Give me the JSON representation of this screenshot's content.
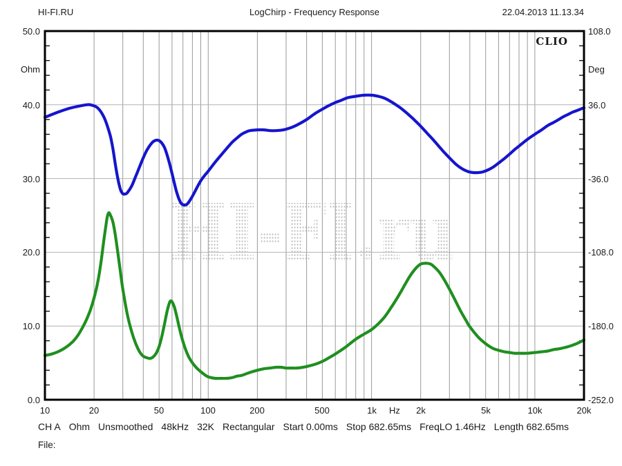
{
  "header": {
    "site": "HI-FI.RU",
    "title": "LogChirp - Frequency Response",
    "datetime": "22.04.2013 11.13.34"
  },
  "plot": {
    "brand": "CLIO",
    "watermark": "HI-FI.ru",
    "left_axis": {
      "unit": "Ohm",
      "min": 0,
      "max": 50,
      "tick_labels": [
        "50.0",
        "40.0",
        "30.0",
        "20.0",
        "10.0",
        "0.0"
      ],
      "tick_values": [
        50,
        40,
        30,
        20,
        10,
        0
      ]
    },
    "right_axis": {
      "unit": "Deg",
      "min": -252,
      "max": 108,
      "tick_labels": [
        "108.0",
        "36.0",
        "-36.0",
        "-108.0",
        "-180.0",
        "-252.0"
      ],
      "tick_values": [
        108,
        36,
        -36,
        -108,
        -180,
        -252
      ]
    },
    "x_axis": {
      "unit": "Hz",
      "scale": "log",
      "min": 10,
      "max": 20000,
      "tick_labels": [
        "10",
        "20",
        "50",
        "100",
        "200",
        "500",
        "1k",
        "2k",
        "5k",
        "10k",
        "20k"
      ],
      "tick_values": [
        10,
        20,
        50,
        100,
        200,
        500,
        1000,
        2000,
        5000,
        10000,
        20000
      ]
    }
  },
  "status_line": {
    "items": [
      "CH A",
      "Ohm",
      "Unsmoothed",
      "48kHz",
      "32K",
      "Rectangular",
      "Start 0.00ms",
      "Stop 682.65ms",
      "FreqLO 1.46Hz",
      "Length 682.65ms"
    ]
  },
  "footer": {
    "file_label": "File:"
  },
  "colors": {
    "frame": "#000000",
    "grid_vertical": "#9a9a9a",
    "grid_horizontal": "#b2b2b2",
    "impedance": "#1f8f1f",
    "phase": "#1515cd",
    "watermark": "#bdbdbd"
  },
  "chart_data": {
    "type": "line",
    "title": "LogChirp - Frequency Response",
    "xlabel": "Hz",
    "x_scale": "log",
    "x_range": [
      10,
      20000
    ],
    "left_axis": {
      "label": "Ohm",
      "range": [
        0,
        50
      ]
    },
    "right_axis": {
      "label": "Deg",
      "range": [
        -252,
        108
      ]
    },
    "grid": "on",
    "series": [
      {
        "name": "Impedance magnitude",
        "axis": "left",
        "unit": "Ohm",
        "color": "#1f8f1f",
        "points": [
          [
            10,
            6.0
          ],
          [
            11,
            6.2
          ],
          [
            12,
            6.5
          ],
          [
            13,
            6.9
          ],
          [
            14,
            7.4
          ],
          [
            15,
            8.0
          ],
          [
            16,
            8.8
          ],
          [
            17,
            9.8
          ],
          [
            18,
            10.9
          ],
          [
            19,
            12.2
          ],
          [
            20,
            13.8
          ],
          [
            21,
            15.8
          ],
          [
            22,
            18.5
          ],
          [
            23,
            21.8
          ],
          [
            24,
            24.6
          ],
          [
            24.5,
            25.3
          ],
          [
            25,
            25.2
          ],
          [
            26,
            24.2
          ],
          [
            27,
            22.3
          ],
          [
            28,
            19.8
          ],
          [
            29,
            17.3
          ],
          [
            30,
            15.0
          ],
          [
            32,
            11.5
          ],
          [
            34,
            9.2
          ],
          [
            36,
            7.6
          ],
          [
            38,
            6.5
          ],
          [
            40,
            5.9
          ],
          [
            42,
            5.7
          ],
          [
            44,
            5.6
          ],
          [
            46,
            5.8
          ],
          [
            48,
            6.3
          ],
          [
            50,
            7.2
          ],
          [
            52,
            8.6
          ],
          [
            54,
            10.3
          ],
          [
            56,
            12.0
          ],
          [
            58,
            13.2
          ],
          [
            59,
            13.4
          ],
          [
            60,
            13.3
          ],
          [
            62,
            12.6
          ],
          [
            64,
            11.4
          ],
          [
            66,
            10.1
          ],
          [
            68,
            8.9
          ],
          [
            70,
            7.9
          ],
          [
            73,
            6.7
          ],
          [
            76,
            5.8
          ],
          [
            80,
            5.0
          ],
          [
            85,
            4.3
          ],
          [
            90,
            3.8
          ],
          [
            95,
            3.4
          ],
          [
            100,
            3.1
          ],
          [
            110,
            2.9
          ],
          [
            120,
            2.9
          ],
          [
            130,
            2.9
          ],
          [
            140,
            3.0
          ],
          [
            150,
            3.2
          ],
          [
            160,
            3.3
          ],
          [
            180,
            3.7
          ],
          [
            200,
            4.0
          ],
          [
            220,
            4.2
          ],
          [
            240,
            4.3
          ],
          [
            260,
            4.4
          ],
          [
            280,
            4.4
          ],
          [
            300,
            4.3
          ],
          [
            320,
            4.3
          ],
          [
            350,
            4.3
          ],
          [
            380,
            4.4
          ],
          [
            400,
            4.5
          ],
          [
            450,
            4.8
          ],
          [
            500,
            5.2
          ],
          [
            550,
            5.7
          ],
          [
            600,
            6.2
          ],
          [
            650,
            6.7
          ],
          [
            700,
            7.2
          ],
          [
            800,
            8.2
          ],
          [
            900,
            8.9
          ],
          [
            1000,
            9.5
          ],
          [
            1100,
            10.3
          ],
          [
            1200,
            11.2
          ],
          [
            1300,
            12.3
          ],
          [
            1400,
            13.4
          ],
          [
            1500,
            14.5
          ],
          [
            1600,
            15.6
          ],
          [
            1700,
            16.6
          ],
          [
            1800,
            17.4
          ],
          [
            1900,
            18.0
          ],
          [
            2000,
            18.4
          ],
          [
            2100,
            18.5
          ],
          [
            2200,
            18.5
          ],
          [
            2300,
            18.4
          ],
          [
            2400,
            18.1
          ],
          [
            2600,
            17.3
          ],
          [
            2800,
            16.2
          ],
          [
            3000,
            15.0
          ],
          [
            3200,
            13.8
          ],
          [
            3500,
            12.1
          ],
          [
            3800,
            10.7
          ],
          [
            4000,
            9.9
          ],
          [
            4500,
            8.5
          ],
          [
            5000,
            7.6
          ],
          [
            5500,
            7.0
          ],
          [
            6000,
            6.7
          ],
          [
            6500,
            6.5
          ],
          [
            7000,
            6.4
          ],
          [
            7500,
            6.3
          ],
          [
            8000,
            6.3
          ],
          [
            9000,
            6.3
          ],
          [
            10000,
            6.4
          ],
          [
            11000,
            6.5
          ],
          [
            12000,
            6.6
          ],
          [
            13000,
            6.8
          ],
          [
            14000,
            6.9
          ],
          [
            16000,
            7.2
          ],
          [
            18000,
            7.6
          ],
          [
            20000,
            8.1
          ]
        ]
      },
      {
        "name": "Impedance phase",
        "axis": "right",
        "unit": "Deg",
        "color": "#1515cd",
        "points": [
          [
            10,
            23.8
          ],
          [
            12,
            28.8
          ],
          [
            14,
            32.4
          ],
          [
            16,
            34.6
          ],
          [
            18,
            36.0
          ],
          [
            19,
            36.0
          ],
          [
            21,
            33.1
          ],
          [
            23,
            23.8
          ],
          [
            25,
            7.2
          ],
          [
            26,
            -5.8
          ],
          [
            27,
            -22.3
          ],
          [
            28,
            -36.7
          ],
          [
            29,
            -46.8
          ],
          [
            30,
            -50.8
          ],
          [
            31,
            -51.1
          ],
          [
            32,
            -49.7
          ],
          [
            34,
            -43.2
          ],
          [
            36,
            -33.8
          ],
          [
            38,
            -24.5
          ],
          [
            40,
            -15.8
          ],
          [
            42,
            -8.6
          ],
          [
            44,
            -3.6
          ],
          [
            46,
            0.0
          ],
          [
            48,
            1.4
          ],
          [
            50,
            1.1
          ],
          [
            52,
            -1.4
          ],
          [
            54,
            -5.8
          ],
          [
            56,
            -13.0
          ],
          [
            58,
            -21.6
          ],
          [
            60,
            -31.0
          ],
          [
            62,
            -40.3
          ],
          [
            64,
            -49.0
          ],
          [
            66,
            -55.4
          ],
          [
            68,
            -59.8
          ],
          [
            70,
            -61.6
          ],
          [
            72,
            -61.9
          ],
          [
            74,
            -61.2
          ],
          [
            76,
            -59.0
          ],
          [
            80,
            -53.3
          ],
          [
            85,
            -45.4
          ],
          [
            90,
            -38.2
          ],
          [
            95,
            -33.1
          ],
          [
            100,
            -28.8
          ],
          [
            110,
            -20.2
          ],
          [
            120,
            -13.0
          ],
          [
            130,
            -6.5
          ],
          [
            140,
            -0.7
          ],
          [
            150,
            3.6
          ],
          [
            160,
            7.2
          ],
          [
            170,
            9.4
          ],
          [
            180,
            10.8
          ],
          [
            200,
            11.5
          ],
          [
            220,
            11.5
          ],
          [
            240,
            10.8
          ],
          [
            260,
            10.8
          ],
          [
            280,
            11.2
          ],
          [
            300,
            12.2
          ],
          [
            330,
            14.4
          ],
          [
            360,
            17.3
          ],
          [
            400,
            21.6
          ],
          [
            450,
            27.4
          ],
          [
            500,
            31.7
          ],
          [
            550,
            35.3
          ],
          [
            600,
            38.2
          ],
          [
            650,
            40.3
          ],
          [
            700,
            42.5
          ],
          [
            750,
            43.6
          ],
          [
            800,
            44.3
          ],
          [
            900,
            45.4
          ],
          [
            1000,
            45.4
          ],
          [
            1100,
            44.3
          ],
          [
            1200,
            42.5
          ],
          [
            1300,
            39.6
          ],
          [
            1400,
            36.4
          ],
          [
            1500,
            33.1
          ],
          [
            1600,
            29.5
          ],
          [
            1700,
            25.9
          ],
          [
            1800,
            22.3
          ],
          [
            2000,
            15.1
          ],
          [
            2200,
            7.9
          ],
          [
            2400,
            1.4
          ],
          [
            2600,
            -5.0
          ],
          [
            2800,
            -10.8
          ],
          [
            3000,
            -15.8
          ],
          [
            3300,
            -22.3
          ],
          [
            3600,
            -26.6
          ],
          [
            3900,
            -29.2
          ],
          [
            4200,
            -30.2
          ],
          [
            4500,
            -30.2
          ],
          [
            4800,
            -29.5
          ],
          [
            5200,
            -27.4
          ],
          [
            5600,
            -24.5
          ],
          [
            6000,
            -20.9
          ],
          [
            6500,
            -16.6
          ],
          [
            7000,
            -12.2
          ],
          [
            7500,
            -7.9
          ],
          [
            8000,
            -4.3
          ],
          [
            9000,
            2.2
          ],
          [
            10000,
            7.2
          ],
          [
            11000,
            11.5
          ],
          [
            12000,
            15.8
          ],
          [
            13000,
            18.7
          ],
          [
            14000,
            21.6
          ],
          [
            15000,
            24.5
          ],
          [
            16000,
            26.6
          ],
          [
            17000,
            28.8
          ],
          [
            18000,
            30.2
          ],
          [
            19000,
            31.7
          ],
          [
            20000,
            33.1
          ]
        ]
      }
    ]
  }
}
